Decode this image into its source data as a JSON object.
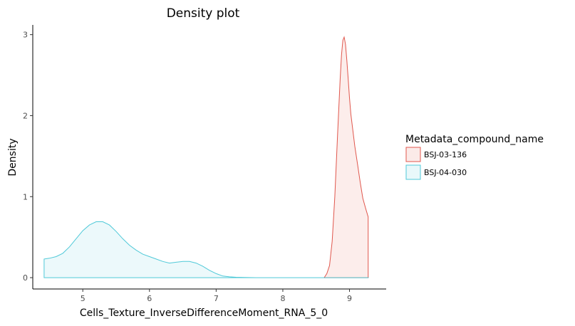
{
  "chart_data": {
    "type": "area",
    "title": "Density plot",
    "xlabel": "Cells_Texture_InverseDifferenceMoment_RNA_5_0",
    "ylabel": "Density",
    "xlim": [
      4.25,
      9.55
    ],
    "ylim": [
      -0.14,
      3.12
    ],
    "x_ticks": [
      5,
      6,
      7,
      8,
      9
    ],
    "x_tick_labels": [
      "5",
      "6",
      "7",
      "8",
      "9"
    ],
    "y_ticks": [
      0,
      1,
      2,
      3
    ],
    "y_tick_labels": [
      "0",
      "1",
      "2",
      "3"
    ],
    "grid": false,
    "legend": {
      "title": "Metadata_compound_name",
      "placement": "right"
    },
    "series": [
      {
        "name": "BSJ-03-136",
        "color": "#e0574d",
        "fill": "#fbeae8",
        "x": [
          8.62,
          8.66,
          8.7,
          8.74,
          8.78,
          8.82,
          8.86,
          8.88,
          8.9,
          8.92,
          8.94,
          8.96,
          8.98,
          9.0,
          9.02,
          9.05,
          9.08,
          9.12,
          9.16,
          9.2,
          9.24,
          9.28
        ],
        "values": [
          0,
          0.05,
          0.15,
          0.45,
          1.0,
          1.75,
          2.45,
          2.75,
          2.93,
          2.97,
          2.88,
          2.68,
          2.45,
          2.22,
          2.02,
          1.82,
          1.62,
          1.4,
          1.18,
          0.98,
          0.86,
          0.75
        ]
      },
      {
        "name": "BSJ-04-030",
        "color": "#4fc9d8",
        "fill": "#e9f8fa",
        "x": [
          4.42,
          4.5,
          4.6,
          4.7,
          4.8,
          4.9,
          5.0,
          5.1,
          5.2,
          5.3,
          5.4,
          5.5,
          5.6,
          5.7,
          5.8,
          5.9,
          6.0,
          6.1,
          6.2,
          6.3,
          6.4,
          6.5,
          6.6,
          6.7,
          6.8,
          6.9,
          7.0,
          7.1,
          7.2,
          7.3,
          7.4,
          7.6,
          7.8,
          8.0,
          8.2,
          8.4,
          8.6,
          8.8,
          9.0,
          9.28
        ],
        "values": [
          0.23,
          0.24,
          0.26,
          0.3,
          0.38,
          0.48,
          0.58,
          0.65,
          0.69,
          0.69,
          0.65,
          0.57,
          0.48,
          0.4,
          0.34,
          0.29,
          0.26,
          0.23,
          0.2,
          0.18,
          0.19,
          0.2,
          0.2,
          0.18,
          0.14,
          0.09,
          0.05,
          0.02,
          0.01,
          0.005,
          0.002,
          0,
          0,
          0,
          0,
          0,
          0,
          0,
          0,
          0
        ]
      }
    ]
  }
}
